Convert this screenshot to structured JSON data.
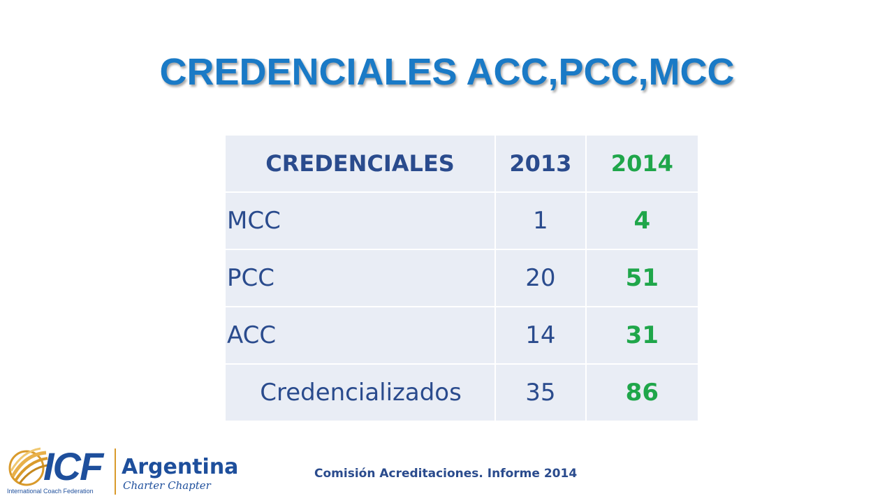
{
  "slide": {
    "title": "CREDENCIALES ACC,PCC,MCC",
    "footer": "Comisión Acreditaciones. Informe 2014"
  },
  "table": {
    "headers": [
      "CREDENCIALES",
      "2013",
      "2014"
    ],
    "rows": [
      {
        "label": "MCC",
        "y2013": "1",
        "y2014": "4"
      },
      {
        "label": "PCC",
        "y2013": "20",
        "y2014": "51"
      },
      {
        "label": "ACC",
        "y2013": "14",
        "y2014": "31"
      },
      {
        "label": "Credencializados",
        "y2013": "35",
        "y2014": "86"
      }
    ]
  },
  "logo": {
    "brand": "ICF",
    "federation": "International Coach Federation",
    "country": "Argentina",
    "chapter": "Charter Chapter"
  },
  "colors": {
    "title": "#1a7ac6",
    "text": "#2a4b8d",
    "highlight": "#1fa64a",
    "cell_bg": "#e9edf5",
    "logo_blue": "#1e4f9c",
    "logo_gold": "#d99a2b"
  },
  "chart_data": {
    "type": "table",
    "columns": [
      "CREDENCIALES",
      "2013",
      "2014"
    ],
    "rows": [
      [
        "MCC",
        1,
        4
      ],
      [
        "PCC",
        20,
        51
      ],
      [
        "ACC",
        14,
        31
      ],
      [
        "Credencializados",
        35,
        86
      ]
    ]
  }
}
